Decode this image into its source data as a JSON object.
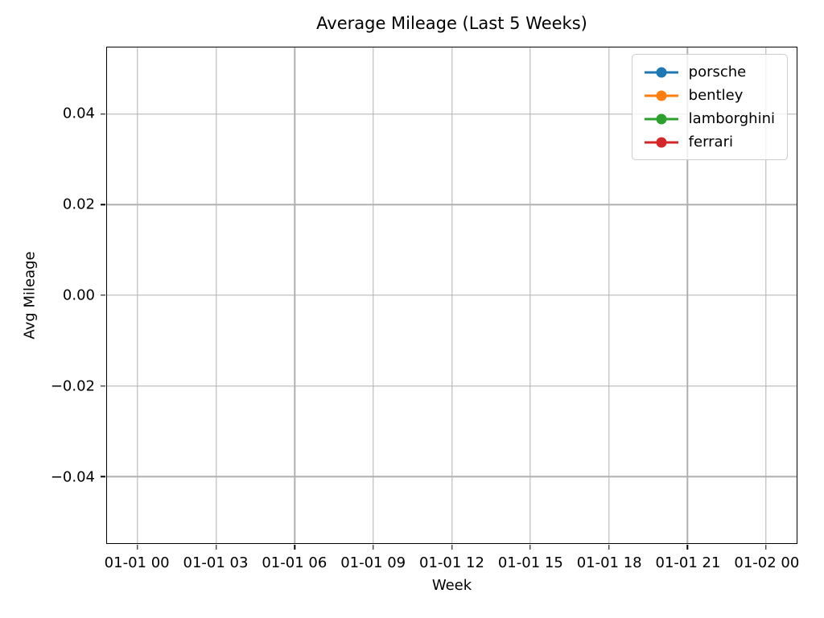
{
  "chart_data": {
    "type": "line",
    "title": "Average Mileage (Last 5 Weeks)",
    "xlabel": "Week",
    "ylabel": "Avg Mileage",
    "grid": true,
    "legend_position": "upper right",
    "background_color": "#ffffff",
    "grid_color": "#b0b0b0",
    "spine_color": "#000000",
    "x_axis": {
      "tick_labels": [
        "01-01 00",
        "01-01 03",
        "01-01 06",
        "01-01 09",
        "01-01 12",
        "01-01 15",
        "01-01 18",
        "01-01 21",
        "01-02 00"
      ],
      "tick_hours": [
        0,
        3,
        6,
        9,
        12,
        15,
        18,
        21,
        24
      ],
      "range_hours": [
        -1.17,
        25.17
      ]
    },
    "y_axis": {
      "tick_labels": [
        "0.04",
        "0.02",
        "0.00",
        "−0.02",
        "−0.04"
      ],
      "tick_values": [
        0.04,
        0.02,
        0.0,
        -0.02,
        -0.04
      ],
      "range": [
        -0.0547,
        0.0547
      ]
    },
    "series": [
      {
        "name": "porsche",
        "color": "#1f77b4",
        "marker": "circle",
        "values": []
      },
      {
        "name": "bentley",
        "color": "#ff7f0e",
        "marker": "circle",
        "values": []
      },
      {
        "name": "lamborghini",
        "color": "#2ca02c",
        "marker": "circle",
        "values": []
      },
      {
        "name": "ferrari",
        "color": "#d62728",
        "marker": "circle",
        "values": []
      }
    ]
  }
}
